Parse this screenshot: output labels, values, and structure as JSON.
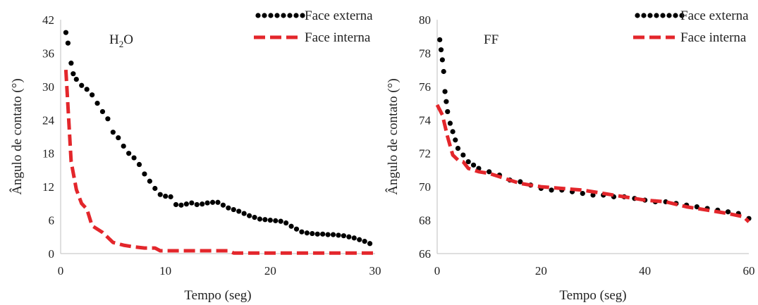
{
  "colors": {
    "externa": "#000000",
    "interna": "#e3262b",
    "axis": "#bfbfbf",
    "text": "#222222"
  },
  "chart_data": [
    {
      "type": "line",
      "annotation": {
        "main": "H",
        "sub": "2",
        "tail": "O"
      },
      "xlabel": "Tempo (seg)",
      "ylabel": "Ângulo de contato (°)",
      "xlim": [
        0,
        30
      ],
      "ylim": [
        0,
        42
      ],
      "xticks": [
        "0",
        "10",
        "20",
        "30"
      ],
      "yticks": [
        "0",
        "6",
        "12",
        "18",
        "24",
        "30",
        "36",
        "42"
      ],
      "legend_placement": "top-right",
      "series": [
        {
          "name": "Face externa",
          "style": "dotted",
          "x": [
            0.5,
            0.7,
            1,
            1.2,
            1.5,
            2,
            2.5,
            3,
            3.5,
            4,
            4.5,
            5,
            5.5,
            6,
            6.5,
            7,
            7.5,
            8,
            8.5,
            9,
            9.5,
            10,
            10.5,
            11,
            11.5,
            12,
            12.5,
            13,
            13.5,
            14,
            14.5,
            15,
            15.5,
            16,
            16.5,
            17,
            17.5,
            18,
            18.5,
            19,
            19.5,
            20,
            20.5,
            21,
            21.5,
            22,
            22.5,
            23,
            23.5,
            24,
            24.5,
            25,
            25.5,
            26,
            26.5,
            27,
            27.5,
            28,
            28.5,
            29,
            29.5
          ],
          "values": [
            39.7,
            37.8,
            34.2,
            32.3,
            31.3,
            30.2,
            29.5,
            28.5,
            27.0,
            25.5,
            24.2,
            21.8,
            20.8,
            19.3,
            18.0,
            17.2,
            16.0,
            14.3,
            13.0,
            11.7,
            10.6,
            10.3,
            10.2,
            8.8,
            8.7,
            8.9,
            9.1,
            8.8,
            8.9,
            9.1,
            9.2,
            9.2,
            8.7,
            8.2,
            7.9,
            7.6,
            7.2,
            6.8,
            6.5,
            6.2,
            6.1,
            6.0,
            5.9,
            5.8,
            5.5,
            4.9,
            4.4,
            3.9,
            3.7,
            3.6,
            3.5,
            3.5,
            3.4,
            3.4,
            3.3,
            3.2,
            3.0,
            2.8,
            2.5,
            2.2,
            1.8
          ]
        },
        {
          "name": "Face interna",
          "style": "dashed",
          "x": [
            0.5,
            1,
            1.5,
            2,
            2.5,
            3,
            4,
            5,
            6,
            7,
            8,
            9,
            9.5,
            10,
            12,
            14,
            15,
            16,
            16.5,
            18,
            20,
            22,
            24,
            26,
            28,
            30
          ],
          "values": [
            33.0,
            16.5,
            11.5,
            9.0,
            8.0,
            5.0,
            3.8,
            2.0,
            1.5,
            1.2,
            1.0,
            1.0,
            0.5,
            0.5,
            0.5,
            0.5,
            0.5,
            0.5,
            0.1,
            0.1,
            0.1,
            0.1,
            0.1,
            0.1,
            0.1,
            0.1
          ]
        }
      ]
    },
    {
      "type": "line",
      "annotation": {
        "main": "FF",
        "sub": "",
        "tail": ""
      },
      "xlabel": "Tempo (seg)",
      "ylabel": "Ângulo de contato (°)",
      "xlim": [
        0,
        60
      ],
      "ylim": [
        66,
        80
      ],
      "xticks": [
        "0",
        "20",
        "40",
        "60"
      ],
      "yticks": [
        "66",
        "68",
        "70",
        "72",
        "74",
        "76",
        "78",
        "80"
      ],
      "legend_placement": "top-right",
      "series": [
        {
          "name": "Face externa",
          "style": "dotted",
          "x": [
            0.5,
            0.75,
            1,
            1.25,
            1.5,
            1.75,
            2,
            2.5,
            3,
            3.5,
            4,
            5,
            6,
            7,
            8,
            10,
            12,
            14,
            16,
            18,
            20,
            22,
            24,
            26,
            28,
            30,
            32,
            34,
            36,
            38,
            40,
            42,
            44,
            46,
            48,
            50,
            52,
            54,
            56,
            58,
            60
          ],
          "values": [
            78.8,
            78.2,
            77.6,
            76.9,
            75.7,
            75.1,
            74.5,
            73.8,
            73.3,
            72.8,
            72.3,
            71.9,
            71.5,
            71.3,
            71.1,
            70.9,
            70.7,
            70.4,
            70.3,
            70.1,
            69.9,
            69.8,
            69.8,
            69.7,
            69.6,
            69.5,
            69.5,
            69.4,
            69.4,
            69.3,
            69.2,
            69.1,
            69.1,
            69.0,
            68.9,
            68.8,
            68.7,
            68.6,
            68.5,
            68.4,
            68.1
          ]
        },
        {
          "name": "Face interna",
          "style": "dashed",
          "x": [
            0,
            1,
            2,
            3,
            4,
            5,
            6,
            8,
            10,
            12,
            14,
            16,
            18,
            20,
            24,
            28,
            32,
            36,
            40,
            44,
            48,
            52,
            56,
            59,
            60
          ],
          "values": [
            74.9,
            74.3,
            73.0,
            71.9,
            71.6,
            71.5,
            71.1,
            70.9,
            70.8,
            70.6,
            70.4,
            70.2,
            70.1,
            70.0,
            69.9,
            69.8,
            69.6,
            69.4,
            69.2,
            69.1,
            68.8,
            68.6,
            68.4,
            68.2,
            67.9
          ]
        }
      ]
    }
  ]
}
